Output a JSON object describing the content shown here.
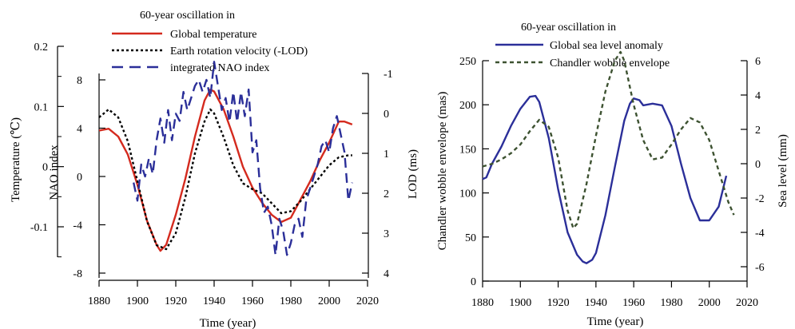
{
  "chart_data": [
    {
      "type": "line",
      "panel": "left",
      "legend_title": "60-year oscillation in",
      "xlabel": "Time (year)",
      "xlim": [
        1875,
        2020
      ],
      "xticks": [
        1880,
        1900,
        1920,
        1940,
        1960,
        1980,
        2000,
        2020
      ],
      "axes": {
        "temperature": {
          "label": "Temperature (℃)",
          "range": [
            -0.18,
            0.2
          ],
          "ticks": [
            0.2,
            0.1,
            0,
            -0.1
          ],
          "tick_labels": [
            "0.2",
            "0.1",
            "0",
            "-0.1"
          ]
        },
        "nao": {
          "label": "NAO index",
          "range": [
            -8,
            8.6
          ],
          "ticks": [
            8,
            4,
            0,
            -4,
            -8
          ],
          "tick_labels": [
            "8",
            "4",
            "0",
            "-4",
            "-8"
          ]
        },
        "lod": {
          "label": "LOD (ms)",
          "range": [
            -1.2,
            4.0
          ],
          "ticks": [
            -1,
            0,
            1,
            2,
            3,
            4
          ],
          "tick_labels": [
            "-1",
            "0",
            "1",
            "2",
            "3",
            "4"
          ],
          "inverted": true
        }
      },
      "series": [
        {
          "name": "Global temperature",
          "axis": "temperature",
          "color": "#d42a1e",
          "style": "solid",
          "x": [
            1880,
            1885,
            1890,
            1895,
            1900,
            1905,
            1910,
            1912,
            1915,
            1920,
            1925,
            1930,
            1935,
            1938,
            1940,
            1945,
            1950,
            1955,
            1960,
            1965,
            1970,
            1975,
            1980,
            1985,
            1990,
            1995,
            2000,
            2005,
            2008,
            2012
          ],
          "y": [
            0.06,
            0.063,
            0.05,
            0.02,
            -0.03,
            -0.09,
            -0.13,
            -0.14,
            -0.13,
            -0.08,
            -0.02,
            0.05,
            0.11,
            0.128,
            0.125,
            0.095,
            0.05,
            0.0,
            -0.035,
            -0.06,
            -0.08,
            -0.092,
            -0.085,
            -0.055,
            -0.025,
            0.01,
            0.04,
            0.075,
            0.075,
            0.07
          ]
        },
        {
          "name": "Earth rotation velocity (-LOD)",
          "axis": "lod",
          "color": "#000000",
          "style": "dotted",
          "x": [
            1880,
            1885,
            1890,
            1895,
            1900,
            1905,
            1910,
            1915,
            1920,
            1925,
            1930,
            1935,
            1938,
            1940,
            1945,
            1950,
            1955,
            1960,
            1965,
            1970,
            1975,
            1980,
            1985,
            1990,
            1995,
            2000,
            2005,
            2010,
            2012
          ],
          "y": [
            0.1,
            -0.1,
            0.1,
            0.7,
            1.7,
            2.7,
            3.3,
            3.4,
            3.0,
            2.1,
            1.0,
            0.2,
            -0.1,
            0.0,
            0.6,
            1.3,
            1.75,
            1.9,
            2.0,
            2.25,
            2.5,
            2.45,
            2.2,
            1.9,
            1.6,
            1.3,
            1.1,
            1.05,
            1.05
          ]
        },
        {
          "name": "integrated NAO index",
          "axis": "nao",
          "color": "#2b2f99",
          "style": "dashed",
          "x": [
            1898,
            1900,
            1902,
            1904,
            1906,
            1908,
            1910,
            1912,
            1914,
            1916,
            1918,
            1920,
            1922,
            1924,
            1926,
            1928,
            1930,
            1932,
            1934,
            1936,
            1938,
            1940,
            1942,
            1944,
            1946,
            1948,
            1950,
            1952,
            1954,
            1956,
            1958,
            1960,
            1962,
            1964,
            1966,
            1968,
            1970,
            1972,
            1974,
            1976,
            1978,
            1980,
            1982,
            1984,
            1986,
            1988,
            1990,
            1992,
            1994,
            1996,
            1998,
            2000,
            2002,
            2004,
            2006,
            2008,
            2010,
            2012
          ],
          "y": [
            -0.5,
            -2.0,
            1.0,
            0.0,
            1.5,
            0.2,
            3.0,
            4.8,
            2.8,
            5.5,
            3.0,
            5.2,
            4.6,
            7.0,
            5.5,
            6.5,
            7.5,
            8.0,
            7.0,
            8.0,
            6.5,
            9.5,
            7.5,
            5.5,
            6.5,
            4.5,
            7.0,
            4.5,
            7.0,
            5.0,
            7.2,
            2.0,
            3.0,
            -1.0,
            -3.0,
            -2.5,
            -4.0,
            -6.5,
            -3.5,
            -4.5,
            -6.5,
            -5.5,
            -4.0,
            -3.5,
            -5.0,
            -2.0,
            -1.0,
            0.0,
            1.0,
            2.5,
            3.0,
            2.0,
            4.0,
            5.0,
            3.5,
            2.0,
            -2.0,
            -0.5
          ]
        }
      ]
    },
    {
      "type": "line",
      "panel": "right",
      "legend_title": "60-year oscillation in",
      "xlabel": "Time (year)",
      "xlim": [
        1880,
        2020
      ],
      "xticks": [
        1880,
        1900,
        1920,
        1940,
        1960,
        1980,
        2000,
        2020
      ],
      "axes": {
        "envelope": {
          "label": "Chandler wobble envelope (mas)",
          "range": [
            0,
            250
          ],
          "ticks": [
            0,
            50,
            100,
            150,
            200,
            250
          ],
          "tick_labels": [
            "0",
            "50",
            "100",
            "150",
            "200",
            "250"
          ]
        },
        "sea_level": {
          "label": "Sea level (mm)",
          "range": [
            -7,
            6
          ],
          "ticks": [
            6,
            4,
            2,
            0,
            -2,
            -4,
            -6
          ],
          "tick_labels": [
            "6",
            "4",
            "2",
            "0",
            "-2",
            "-4",
            "-6"
          ]
        }
      },
      "series": [
        {
          "name": "Global sea level anomaly",
          "axis": "sea_level",
          "color": "#2b2f99",
          "style": "solid",
          "x": [
            1880,
            1882,
            1885,
            1890,
            1895,
            1900,
            1905,
            1908,
            1910,
            1915,
            1920,
            1925,
            1930,
            1933,
            1935,
            1938,
            1940,
            1945,
            1950,
            1955,
            1958,
            1960,
            1963,
            1965,
            1970,
            1975,
            1980,
            1985,
            1990,
            1995,
            2000,
            2005,
            2009
          ],
          "y": [
            -0.9,
            -0.8,
            0.0,
            1.0,
            2.2,
            3.2,
            3.9,
            3.95,
            3.6,
            1.5,
            -1.5,
            -4.0,
            -5.3,
            -5.7,
            -5.8,
            -5.6,
            -5.2,
            -3.0,
            -0.2,
            2.5,
            3.5,
            3.8,
            3.7,
            3.4,
            3.5,
            3.4,
            2.2,
            0.0,
            -2.0,
            -3.3,
            -3.3,
            -2.5,
            -0.7
          ]
        },
        {
          "name": "Chandler wobble envelope",
          "axis": "envelope",
          "color": "#3d5231",
          "style": "dashed",
          "x": [
            1880,
            1885,
            1890,
            1895,
            1900,
            1905,
            1910,
            1915,
            1920,
            1925,
            1928,
            1930,
            1935,
            1940,
            1945,
            1950,
            1953,
            1955,
            1960,
            1965,
            1970,
            1975,
            1980,
            1985,
            1990,
            1995,
            2000,
            2005,
            2010,
            2013
          ],
          "y": [
            130,
            133,
            138,
            145,
            155,
            170,
            183,
            175,
            140,
            80,
            60,
            65,
            110,
            165,
            215,
            250,
            260,
            250,
            200,
            160,
            138,
            140,
            155,
            172,
            185,
            180,
            160,
            125,
            90,
            75
          ]
        }
      ]
    }
  ]
}
